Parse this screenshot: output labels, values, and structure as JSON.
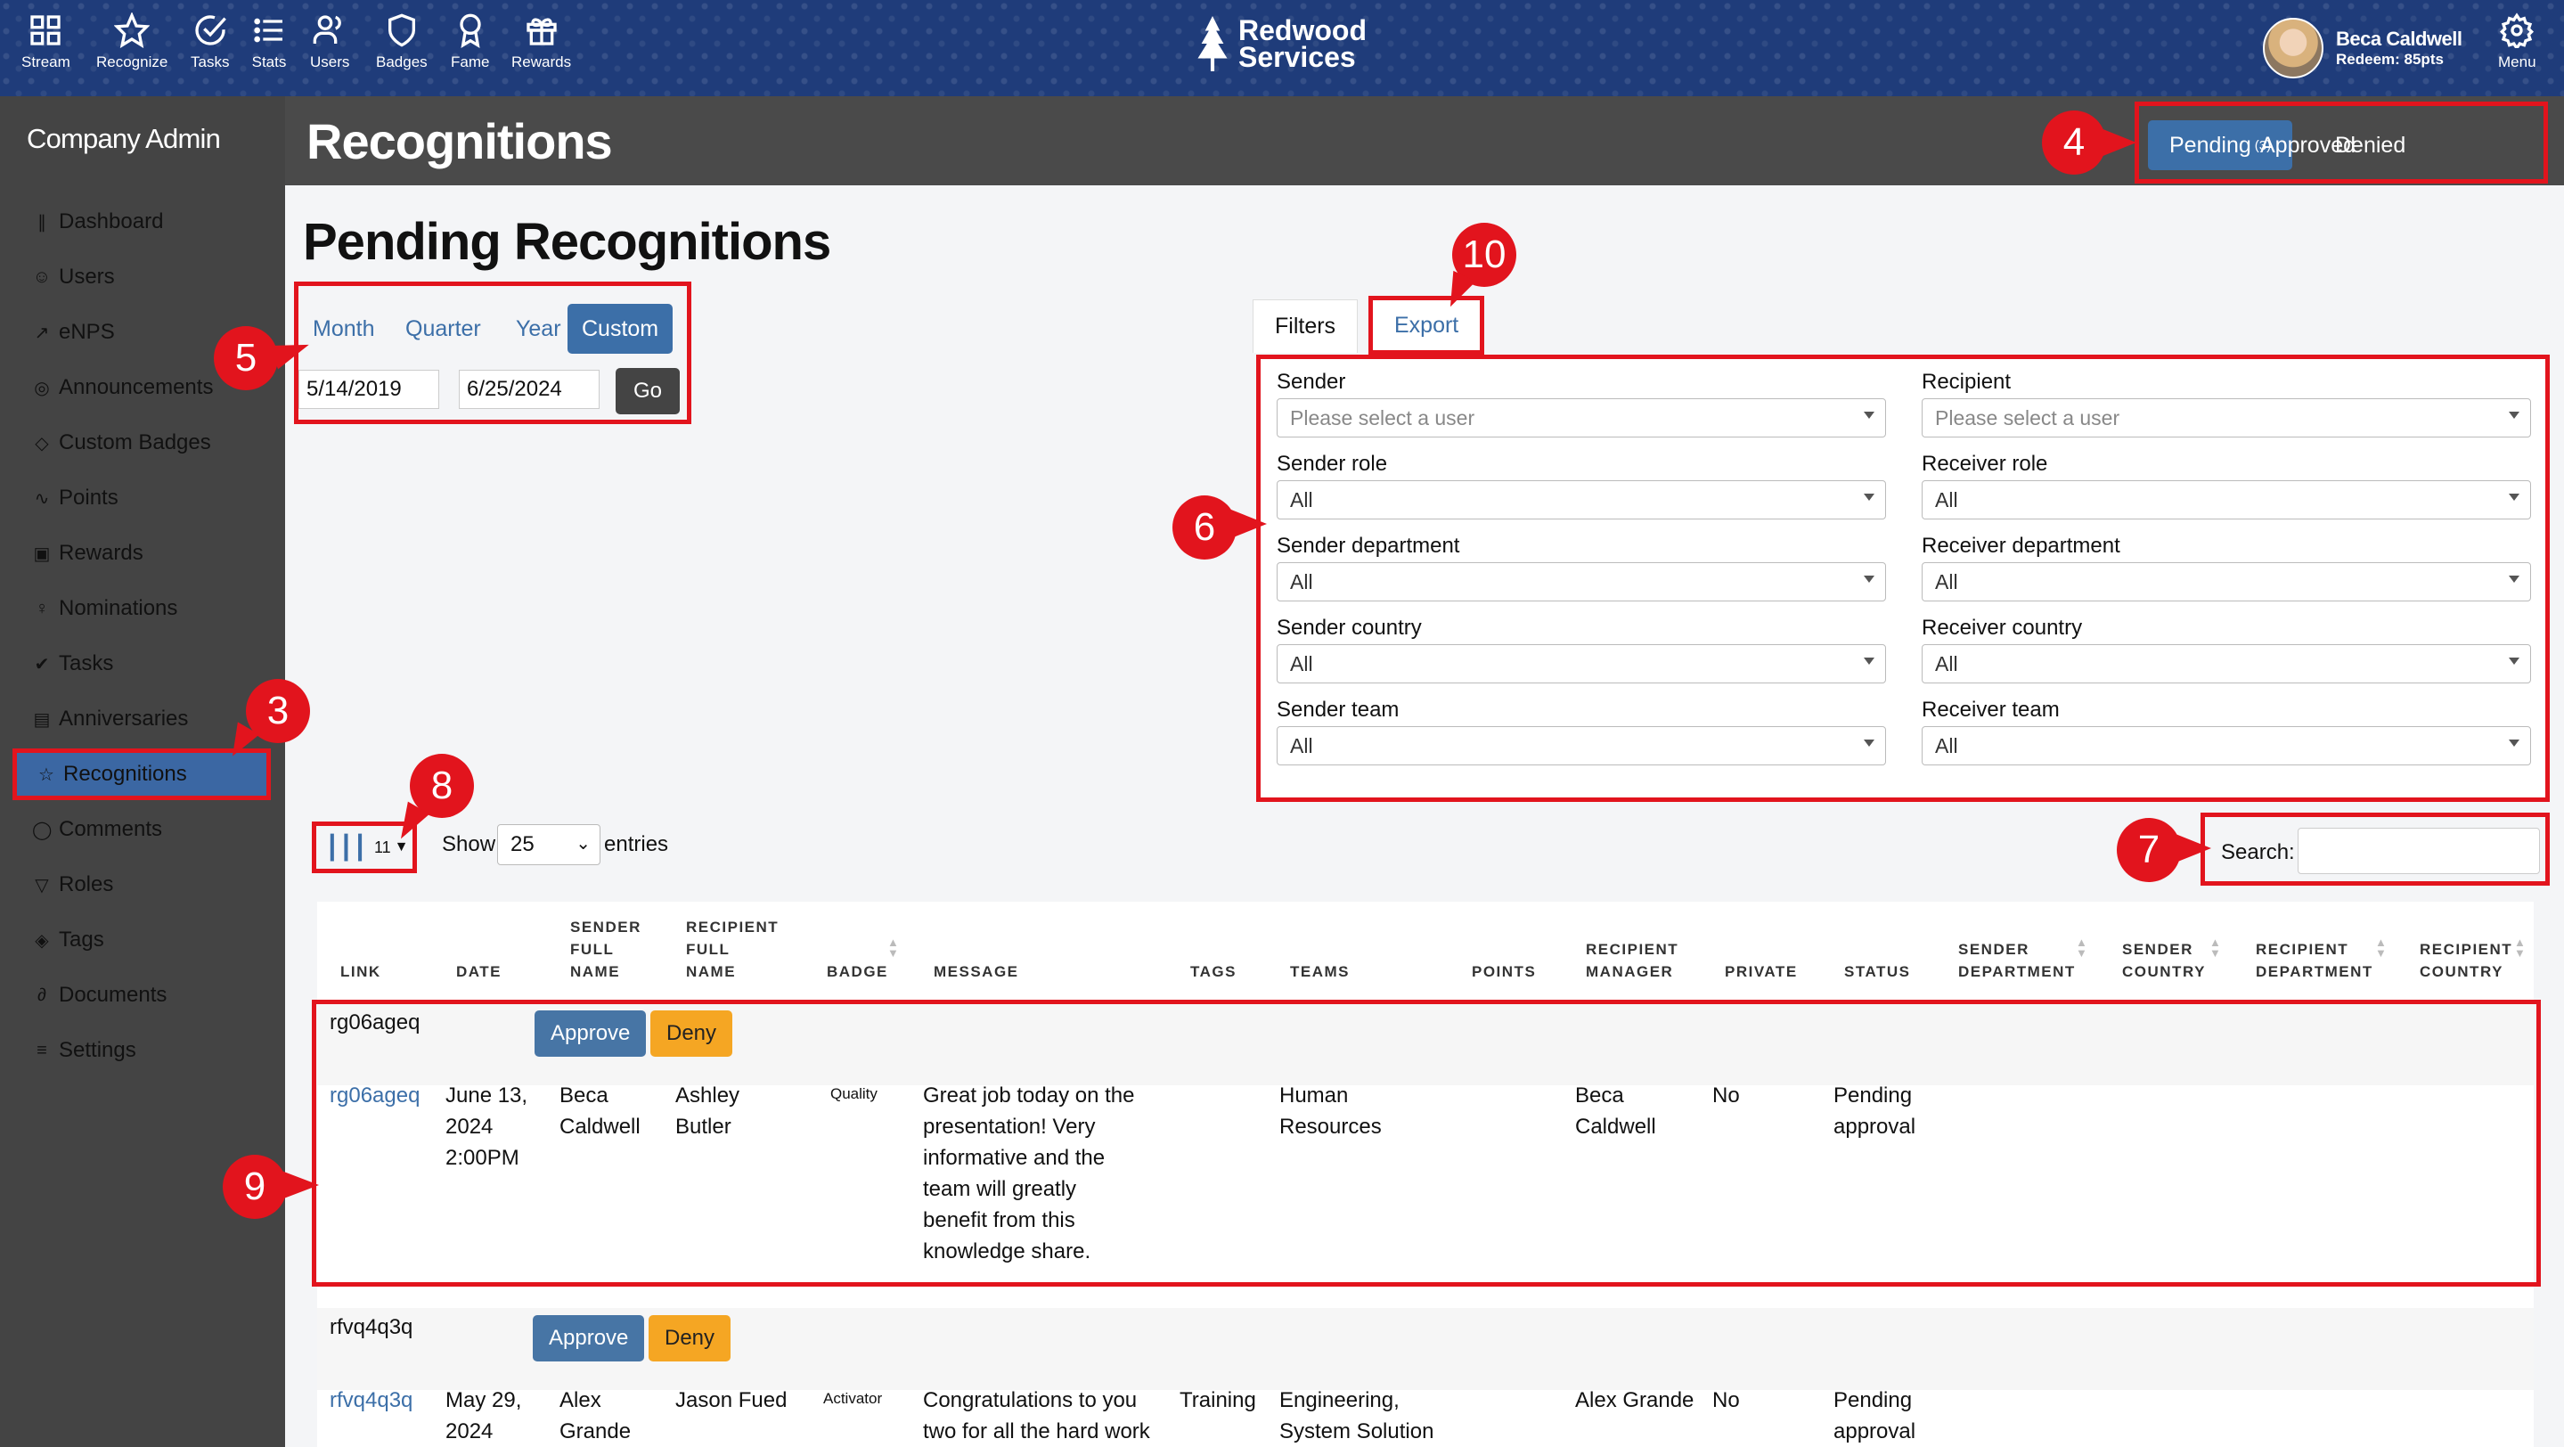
{
  "nav": {
    "items": [
      {
        "label": "Stream",
        "icon": "grid-icon"
      },
      {
        "label": "Recognize",
        "icon": "star-icon"
      },
      {
        "label": "Tasks",
        "icon": "check-circle-icon"
      },
      {
        "label": "Stats",
        "icon": "list-icon"
      },
      {
        "label": "Users",
        "icon": "users-icon"
      },
      {
        "label": "Badges",
        "icon": "shield-icon"
      },
      {
        "label": "Fame",
        "icon": "award-icon"
      },
      {
        "label": "Rewards",
        "icon": "gift-icon"
      }
    ],
    "brand_line1": "Redwood",
    "brand_line2": "Services",
    "user_name": "Beca Caldwell",
    "user_points": "Redeem: 85pts",
    "menu_label": "Menu"
  },
  "sidebar": {
    "title": "Company Admin",
    "items": [
      {
        "label": "Dashboard",
        "icon": "bar-chart-icon"
      },
      {
        "label": "Users",
        "icon": "user-icon"
      },
      {
        "label": "eNPS",
        "icon": "trend-icon"
      },
      {
        "label": "Announcements",
        "icon": "broadcast-icon"
      },
      {
        "label": "Custom Badges",
        "icon": "shield-icon"
      },
      {
        "label": "Points",
        "icon": "pulse-icon"
      },
      {
        "label": "Rewards",
        "icon": "gift-icon"
      },
      {
        "label": "Nominations",
        "icon": "award-icon"
      },
      {
        "label": "Tasks",
        "icon": "check-circle-icon"
      },
      {
        "label": "Anniversaries",
        "icon": "calendar-icon"
      },
      {
        "label": "Recognitions",
        "icon": "star-icon"
      },
      {
        "label": "Comments",
        "icon": "comment-icon"
      },
      {
        "label": "Roles",
        "icon": "filter-icon"
      },
      {
        "label": "Tags",
        "icon": "tag-icon"
      },
      {
        "label": "Documents",
        "icon": "paperclip-icon"
      },
      {
        "label": "Settings",
        "icon": "sliders-icon"
      }
    ]
  },
  "header": {
    "title": "Recognitions",
    "tabs": {
      "pending": "Pending",
      "pending_count": "(3)",
      "approved": "Approved",
      "denied": "Denied"
    }
  },
  "page": {
    "title": "Pending Recognitions",
    "range": {
      "month": "Month",
      "quarter": "Quarter",
      "year": "Year",
      "custom": "Custom",
      "start": "5/14/2019",
      "end": "6/25/2024",
      "go": "Go"
    },
    "filter_tabs": {
      "filters": "Filters",
      "export": "Export"
    },
    "filters": {
      "sender": "Sender",
      "recipient": "Recipient",
      "user_placeholder": "Please select a user",
      "sender_role": "Sender role",
      "receiver_role": "Receiver role",
      "sender_department": "Sender department",
      "receiver_department": "Receiver department",
      "sender_country": "Sender country",
      "receiver_country": "Receiver country",
      "sender_team": "Sender team",
      "receiver_team": "Receiver team",
      "all": "All"
    },
    "columns_count": "11",
    "show": "Show",
    "page_size": "25",
    "entries": "entries",
    "search_label": "Search:"
  },
  "table": {
    "headers": {
      "link": "LINK",
      "date": "DATE",
      "sender1": "SENDER",
      "sender2": "FULL",
      "sender3": "NAME",
      "recipient1": "RECIPIENT",
      "recipient2": "FULL",
      "recipient3": "NAME",
      "badge": "BADGE",
      "message": "MESSAGE",
      "tags": "TAGS",
      "teams": "TEAMS",
      "points": "POINTS",
      "rmanager1": "RECIPIENT",
      "rmanager2": "MANAGER",
      "private": "PRIVATE",
      "status": "STATUS",
      "sdept1": "SENDER",
      "sdept2": "DEPARTMENT",
      "scountry1": "SENDER",
      "scountry2": "COUNTRY",
      "rdept1": "RECIPIENT",
      "rdept2": "DEPARTMENT",
      "rcountry1": "RECIPIENT",
      "rcountry2": "COUNTRY"
    },
    "rows": [
      {
        "id": "rg06ageq",
        "approve": "Approve",
        "deny": "Deny",
        "link": "rg06ageq",
        "date_l1": "June 13,",
        "date_l2": "2024",
        "date_l3": "2:00PM",
        "sender_l1": "Beca",
        "sender_l2": "Caldwell",
        "recipient_l1": "Ashley",
        "recipient_l2": "Butler",
        "badge": "Quality",
        "msg_l1": "Great job today on the",
        "msg_l2": "presentation! Very",
        "msg_l3": "informative and the",
        "msg_l4": "team will greatly",
        "msg_l5": "benefit from this",
        "msg_l6": "knowledge share.",
        "tags": "",
        "teams_l1": "Human",
        "teams_l2": "Resources",
        "manager_l1": "Beca",
        "manager_l2": "Caldwell",
        "private": "No",
        "status_l1": "Pending",
        "status_l2": "approval"
      },
      {
        "id": "rfvq4q3q",
        "approve": "Approve",
        "deny": "Deny",
        "link": "rfvq4q3q",
        "date_l1": "May 29,",
        "date_l2": "2024",
        "sender_l1": "Alex",
        "sender_l2": "Grande",
        "recipient_l1": "Jason Fued",
        "badge": "Activator",
        "msg_l1": "Congratulations to you",
        "msg_l2": "two for all the hard work",
        "tags": "Training",
        "teams_l1": "Engineering,",
        "teams_l2": "System Solution",
        "manager_l1": "Alex Grande",
        "private": "No",
        "status_l1": "Pending",
        "status_l2": "approval"
      }
    ]
  },
  "callouts": [
    "3",
    "4",
    "5",
    "6",
    "7",
    "8",
    "9",
    "10"
  ],
  "colors": {
    "accent": "#3c6fa8",
    "annotation": "#e2141d",
    "deny": "#f5a623",
    "sidebar": "#444444"
  }
}
